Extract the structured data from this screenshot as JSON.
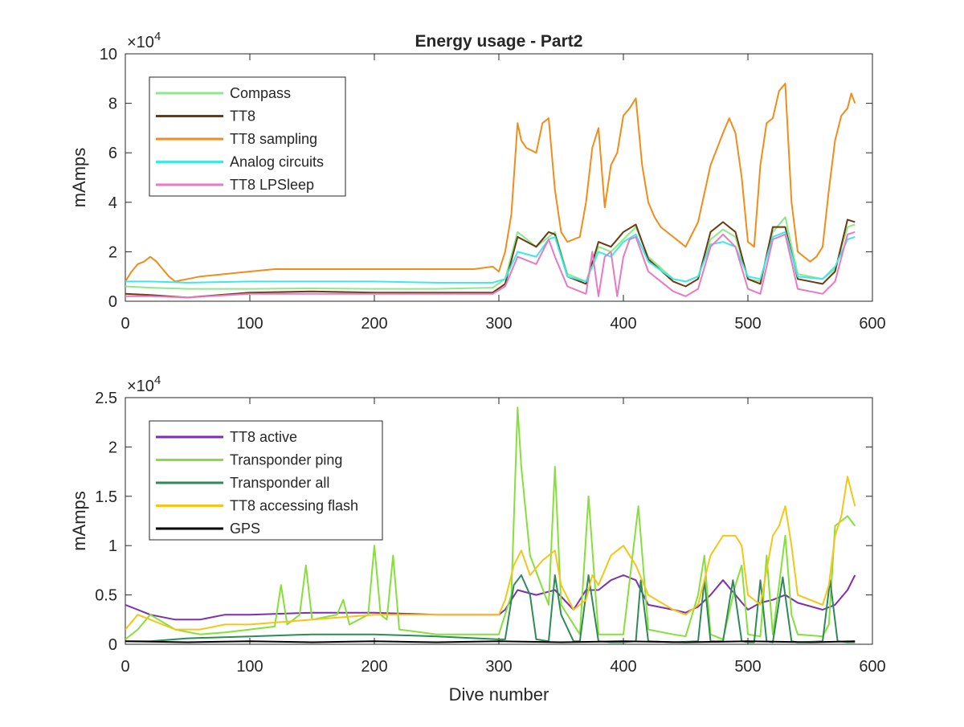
{
  "chart_data": [
    {
      "type": "line",
      "title": "Energy usage - Part2",
      "xlabel": "",
      "ylabel": "mAmps",
      "y_exponent_label": "×10",
      "y_exponent_power": "4",
      "y_multiplier": 10000,
      "xlim": [
        0,
        600
      ],
      "ylim": [
        0,
        100000
      ],
      "xticks": [
        0,
        100,
        200,
        300,
        400,
        500,
        600
      ],
      "yticks": [
        0,
        20000,
        40000,
        60000,
        80000,
        100000
      ],
      "ytick_labels": [
        "0",
        "2",
        "4",
        "6",
        "8",
        "10"
      ],
      "grid": false,
      "legend_position": "top-left",
      "series": [
        {
          "name": "Compass",
          "color": "#8ee88e",
          "x": [
            0,
            20,
            50,
            100,
            150,
            200,
            250,
            295,
            305,
            315,
            330,
            340,
            345,
            355,
            370,
            380,
            390,
            400,
            410,
            420,
            440,
            450,
            460,
            470,
            480,
            490,
            500,
            510,
            520,
            530,
            540,
            560,
            570,
            580,
            586
          ],
          "y": [
            6000,
            5500,
            5000,
            5000,
            5200,
            5000,
            5000,
            5500,
            9000,
            28000,
            22000,
            26000,
            28000,
            11000,
            8000,
            22000,
            20000,
            25000,
            30000,
            18000,
            9000,
            8000,
            10000,
            25000,
            29000,
            26000,
            9000,
            8000,
            28000,
            34000,
            11000,
            9000,
            13000,
            30000,
            31000
          ]
        },
        {
          "name": "TT8",
          "color": "#6b3a0f",
          "x": [
            0,
            20,
            50,
            100,
            150,
            200,
            250,
            295,
            305,
            315,
            330,
            340,
            345,
            355,
            370,
            380,
            390,
            400,
            410,
            420,
            440,
            450,
            460,
            470,
            480,
            490,
            500,
            510,
            520,
            530,
            540,
            560,
            570,
            580,
            586
          ],
          "y": [
            3000,
            2500,
            1500,
            3500,
            4000,
            3500,
            3500,
            3500,
            7000,
            26000,
            22000,
            28000,
            27000,
            10000,
            7000,
            24000,
            22000,
            28000,
            31000,
            17000,
            8000,
            6000,
            9000,
            28000,
            32000,
            28000,
            9000,
            7000,
            30000,
            30000,
            9000,
            7000,
            12000,
            33000,
            32000
          ]
        },
        {
          "name": "TT8 sampling",
          "color": "#f28c1a",
          "x": [
            0,
            5,
            10,
            15,
            20,
            25,
            30,
            35,
            40,
            50,
            60,
            80,
            100,
            120,
            140,
            160,
            180,
            200,
            220,
            240,
            260,
            280,
            295,
            300,
            305,
            310,
            315,
            318,
            322,
            330,
            335,
            340,
            345,
            350,
            355,
            360,
            365,
            370,
            375,
            380,
            385,
            390,
            395,
            400,
            405,
            410,
            415,
            420,
            425,
            430,
            440,
            450,
            460,
            470,
            480,
            485,
            490,
            495,
            500,
            505,
            510,
            515,
            520,
            525,
            530,
            535,
            540,
            545,
            550,
            555,
            560,
            565,
            570,
            575,
            580,
            583,
            586
          ],
          "y": [
            8000,
            12000,
            15000,
            16000,
            18000,
            16000,
            13000,
            10000,
            8000,
            9000,
            10000,
            11000,
            12000,
            13000,
            13000,
            13000,
            13000,
            13000,
            13000,
            13000,
            13000,
            13000,
            14000,
            12000,
            20000,
            35000,
            72000,
            65000,
            62000,
            60000,
            72000,
            74000,
            45000,
            28000,
            24000,
            25000,
            26000,
            40000,
            62000,
            70000,
            38000,
            55000,
            60000,
            75000,
            78000,
            82000,
            55000,
            40000,
            34000,
            30000,
            26000,
            22000,
            32000,
            55000,
            68000,
            74000,
            68000,
            50000,
            24000,
            22000,
            55000,
            72000,
            74000,
            85000,
            88000,
            40000,
            20000,
            18000,
            16000,
            18000,
            22000,
            45000,
            65000,
            75000,
            78000,
            84000,
            80000
          ]
        },
        {
          "name": "Analog circuits",
          "color": "#3de8e8",
          "x": [
            0,
            20,
            50,
            100,
            150,
            200,
            250,
            295,
            305,
            315,
            330,
            340,
            345,
            355,
            370,
            380,
            390,
            400,
            410,
            420,
            440,
            450,
            460,
            470,
            480,
            490,
            500,
            510,
            520,
            530,
            540,
            560,
            570,
            580,
            586
          ],
          "y": [
            8000,
            8000,
            7500,
            8000,
            8000,
            8000,
            7500,
            7500,
            9000,
            20000,
            18000,
            25000,
            26000,
            10000,
            8000,
            20000,
            18000,
            24000,
            27000,
            16000,
            9000,
            8000,
            10000,
            23000,
            24000,
            22000,
            10000,
            9000,
            26000,
            28000,
            10000,
            9000,
            14000,
            25000,
            26000
          ]
        },
        {
          "name": "TT8 LPSleep",
          "color": "#e879c4",
          "x": [
            0,
            20,
            50,
            100,
            150,
            200,
            250,
            295,
            305,
            315,
            330,
            340,
            345,
            355,
            370,
            375,
            380,
            385,
            390,
            395,
            400,
            405,
            410,
            420,
            440,
            450,
            460,
            470,
            480,
            490,
            500,
            510,
            520,
            530,
            540,
            560,
            570,
            580,
            586
          ],
          "y": [
            2000,
            2000,
            1500,
            3000,
            3000,
            3000,
            3000,
            3000,
            6000,
            18000,
            15000,
            25000,
            18000,
            6000,
            3000,
            20000,
            2000,
            18000,
            20000,
            2000,
            18000,
            25000,
            26000,
            12000,
            4000,
            2000,
            5000,
            22000,
            27000,
            22000,
            5000,
            3000,
            25000,
            27000,
            5000,
            3000,
            8000,
            27000,
            28000
          ]
        }
      ]
    },
    {
      "type": "line",
      "title": "",
      "xlabel": "Dive number",
      "ylabel": "mAmps",
      "y_exponent_label": "×10",
      "y_exponent_power": "4",
      "y_multiplier": 10000,
      "xlim": [
        0,
        600
      ],
      "ylim": [
        0,
        25000
      ],
      "xticks": [
        0,
        100,
        200,
        300,
        400,
        500,
        600
      ],
      "yticks": [
        0,
        5000,
        10000,
        15000,
        20000,
        25000
      ],
      "ytick_labels": [
        "0",
        "0.5",
        "1",
        "1.5",
        "2",
        "2.5"
      ],
      "grid": false,
      "legend_position": "top-left",
      "series": [
        {
          "name": "TT8 active",
          "color": "#7e2fb0",
          "x": [
            0,
            10,
            20,
            40,
            60,
            80,
            100,
            150,
            200,
            250,
            300,
            305,
            315,
            330,
            345,
            360,
            370,
            380,
            390,
            400,
            410,
            420,
            440,
            450,
            460,
            470,
            480,
            490,
            500,
            510,
            520,
            530,
            540,
            560,
            570,
            580,
            586
          ],
          "y": [
            4000,
            3500,
            3000,
            2500,
            2500,
            3000,
            3000,
            3200,
            3200,
            3000,
            3000,
            3500,
            5500,
            5000,
            5500,
            3500,
            5500,
            5500,
            6500,
            7000,
            6500,
            4000,
            3500,
            3200,
            3800,
            5000,
            6500,
            5000,
            3500,
            4200,
            4500,
            5000,
            4200,
            3500,
            4000,
            5500,
            7000
          ]
        },
        {
          "name": "Transponder ping",
          "color": "#86e03a",
          "x": [
            0,
            10,
            20,
            40,
            60,
            80,
            100,
            120,
            125,
            130,
            140,
            145,
            150,
            170,
            175,
            180,
            195,
            200,
            205,
            210,
            215,
            220,
            250,
            300,
            310,
            315,
            318,
            325,
            340,
            345,
            350,
            365,
            372,
            380,
            400,
            412,
            420,
            440,
            450,
            460,
            465,
            470,
            480,
            490,
            495,
            500,
            510,
            515,
            520,
            530,
            535,
            540,
            560,
            565,
            570,
            580,
            586
          ],
          "y": [
            500,
            1500,
            3000,
            1500,
            1000,
            1200,
            1500,
            1800,
            6000,
            2000,
            3000,
            8000,
            2500,
            3000,
            4500,
            2000,
            3000,
            10000,
            3000,
            2500,
            9000,
            1500,
            1000,
            1000,
            5000,
            24000,
            18000,
            9000,
            4000,
            18000,
            4000,
            1000,
            15000,
            1000,
            1000,
            14000,
            1500,
            1000,
            800,
            5000,
            9000,
            1000,
            500,
            6000,
            8000,
            1000,
            800,
            9000,
            1000,
            11000,
            3000,
            1000,
            800,
            2000,
            12000,
            13000,
            12000
          ]
        },
        {
          "name": "Transponder all",
          "color": "#2e8b57",
          "x": [
            0,
            20,
            50,
            100,
            150,
            200,
            250,
            300,
            305,
            312,
            318,
            325,
            330,
            340,
            345,
            350,
            360,
            365,
            372,
            380,
            390,
            400,
            410,
            414,
            420,
            440,
            460,
            465,
            470,
            480,
            488,
            495,
            500,
            505,
            510,
            515,
            520,
            528,
            535,
            540,
            560,
            566,
            572,
            580,
            586
          ],
          "y": [
            300,
            300,
            600,
            800,
            1000,
            1000,
            800,
            500,
            500,
            6000,
            7000,
            5000,
            500,
            300,
            7000,
            3000,
            300,
            300,
            7000,
            300,
            200,
            200,
            300,
            6500,
            300,
            200,
            300,
            6500,
            300,
            300,
            6500,
            300,
            200,
            200,
            6500,
            300,
            200,
            6800,
            300,
            200,
            300,
            6500,
            300,
            200,
            200
          ]
        },
        {
          "name": "TT8 accessing flash",
          "color": "#f5c518",
          "x": [
            0,
            10,
            20,
            40,
            60,
            80,
            100,
            150,
            200,
            250,
            300,
            305,
            312,
            318,
            325,
            335,
            345,
            350,
            360,
            370,
            375,
            380,
            390,
            400,
            410,
            420,
            440,
            450,
            460,
            470,
            480,
            490,
            495,
            500,
            510,
            520,
            525,
            530,
            535,
            540,
            560,
            565,
            570,
            575,
            580,
            586
          ],
          "y": [
            1500,
            3000,
            2500,
            1500,
            1500,
            2000,
            2000,
            2500,
            3000,
            3000,
            3000,
            4500,
            8000,
            9500,
            7000,
            8500,
            9500,
            6000,
            3500,
            4500,
            7000,
            6000,
            9000,
            10000,
            8000,
            5000,
            3500,
            3000,
            4000,
            9000,
            11000,
            11000,
            10000,
            5000,
            4000,
            11000,
            12000,
            14000,
            10000,
            5000,
            4000,
            6000,
            11000,
            13000,
            17000,
            14000
          ]
        },
        {
          "name": "GPS",
          "color": "#000000",
          "x": [
            0,
            50,
            100,
            150,
            200,
            250,
            300,
            350,
            400,
            450,
            500,
            550,
            586
          ],
          "y": [
            300,
            200,
            300,
            200,
            300,
            200,
            300,
            200,
            300,
            200,
            300,
            200,
            300
          ]
        }
      ]
    }
  ]
}
